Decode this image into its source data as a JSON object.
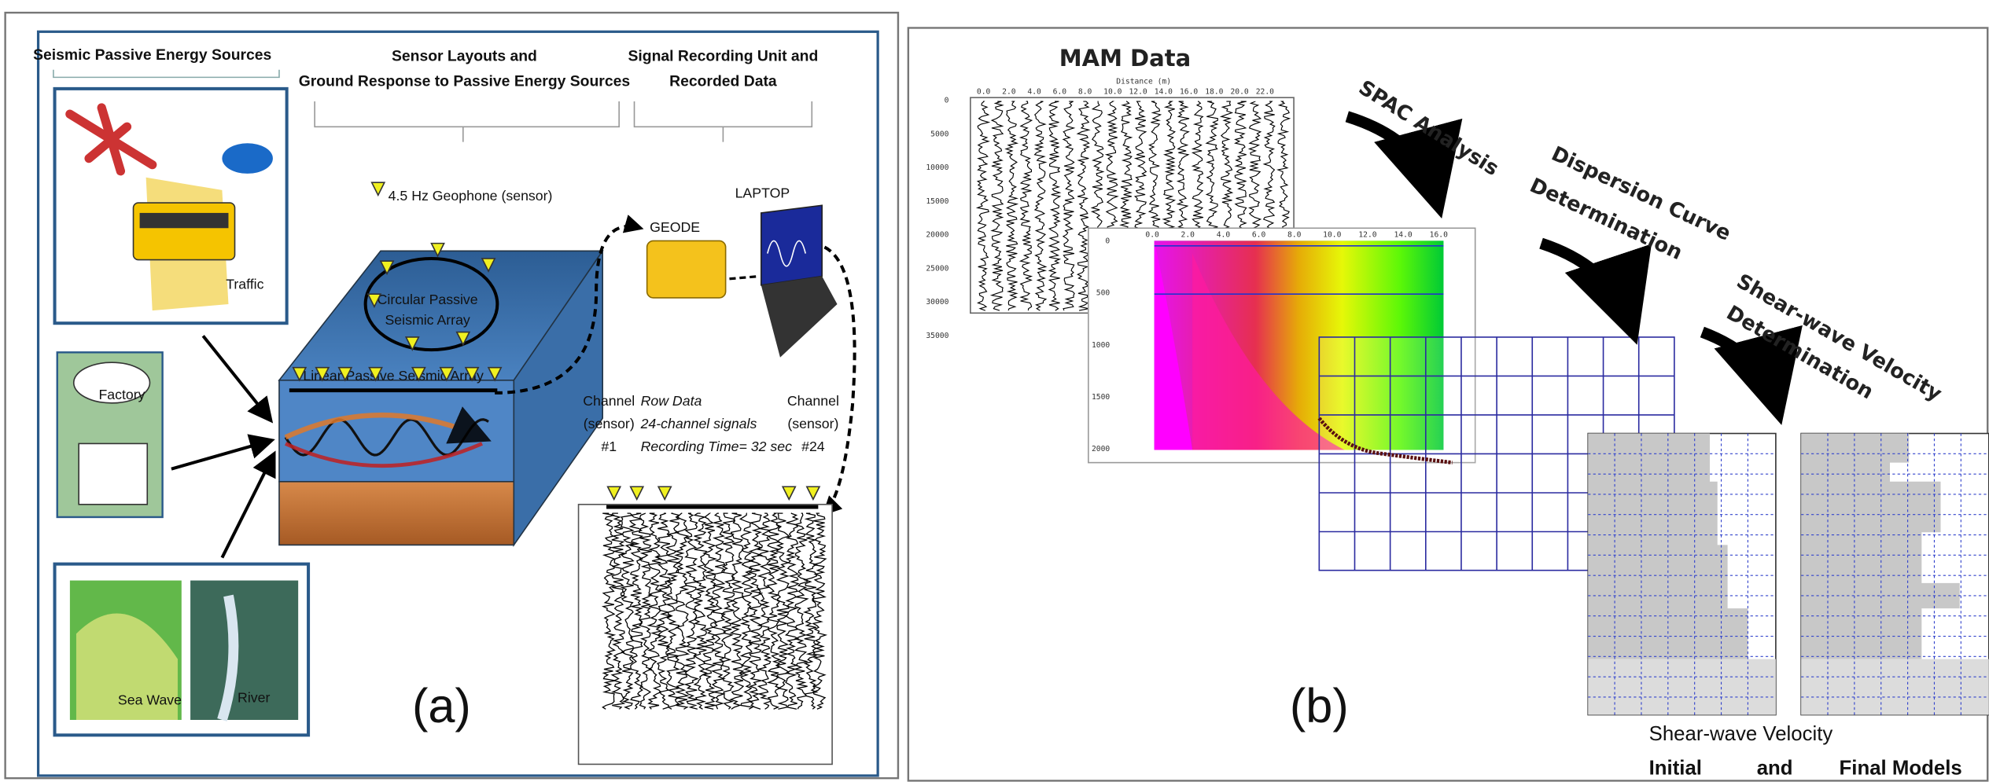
{
  "panels": {
    "a": {
      "label": "(a)",
      "sources_title": "Seismic Passive Energy Sources",
      "layout_title": [
        "Sensor Layouts and",
        "Ground Response to Passive Energy Sources"
      ],
      "recording_title": [
        "Signal Recording Unit and",
        "Recorded Data"
      ],
      "geophone": "4.5 Hz Geophone (sensor)",
      "traffic": "Traffic",
      "factory": "Factory",
      "sea_wave": "Sea Wave",
      "river": "River",
      "circular_array": [
        "Circular Passive",
        "Seismic Array"
      ],
      "linear_array": "Linear Passive Seismic Array",
      "geode": "GEODE",
      "laptop": "LAPTOP",
      "channel_first": [
        "Channel",
        "(sensor)",
        "#1"
      ],
      "raw_data": [
        "Row Data",
        "24-channel signals",
        "Recording Time= 32 sec"
      ],
      "channel_last": [
        "Channel",
        "(sensor)",
        "#24"
      ]
    },
    "b": {
      "label": "(b)",
      "mam_title": "MAM Data",
      "mam_distance_label": "Distance (m)",
      "mam_x_ticks": [
        "0.0",
        "2.0",
        "4.0",
        "6.0",
        "8.0",
        "10.0",
        "12.0",
        "14.0",
        "16.0",
        "18.0",
        "20.0",
        "22.0"
      ],
      "mam_y_ticks": [
        "0",
        "5000",
        "10000",
        "15000",
        "20000",
        "25000",
        "30000",
        "35000"
      ],
      "spac_x_ticks": [
        "0.0",
        "2.0",
        "4.0",
        "6.0",
        "8.0",
        "10.0",
        "12.0",
        "14.0",
        "16.0"
      ],
      "spac_y_ticks": [
        "0",
        "500",
        "1000",
        "1500",
        "2000"
      ],
      "spac": "SPAC Analysis",
      "dispersion": [
        "Dispersion Curve",
        "Determination"
      ],
      "shear_det": [
        "Shear-wave Velocity",
        "Determination"
      ],
      "models": [
        "Shear-wave Velocity",
        "Initial",
        "and",
        "Final Models"
      ]
    }
  }
}
